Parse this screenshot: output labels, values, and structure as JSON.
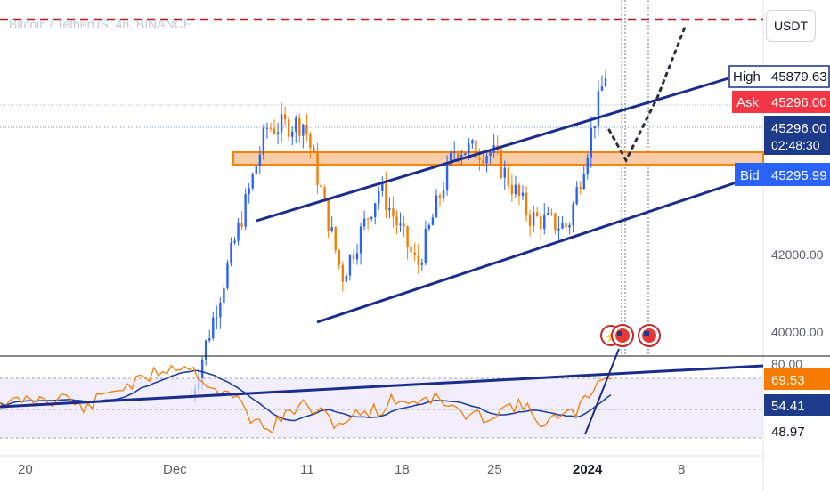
{
  "header": {
    "symbol_title": "Bitcoin / TetherUS, 4h, BINANCE",
    "currency_button": "USDT"
  },
  "price_scale": {
    "ticks": [
      "42000.00",
      "40000.00"
    ],
    "labels": {
      "high": {
        "name": "High",
        "value": "45879.63"
      },
      "ask": {
        "name": "Ask",
        "value": "45296.00"
      },
      "last": {
        "value": "45296.00",
        "countdown": "02:48:30"
      },
      "bid": {
        "name": "Bid",
        "value": "45295.99"
      }
    }
  },
  "rsi_scale": {
    "ticks": [
      "80.00"
    ],
    "labels": {
      "rsi": "69.53",
      "rsi_ma": "54.41",
      "low": "48.97"
    }
  },
  "time_axis": {
    "labels": [
      "20",
      "Dec",
      "11",
      "18",
      "25",
      "2024",
      "8"
    ]
  },
  "colors": {
    "up": "#2962ff",
    "down": "#f57c00",
    "trendline": "#1a2d8c",
    "resistance_fill": "#f9cba3",
    "resistance_stroke": "#f57c00",
    "dashed_level": "#b71c1c",
    "rsi_line": "#f57c00",
    "rsi_ma": "#1e40a8",
    "ask_label": "#f23645",
    "bid_label": "#2962ff",
    "last_label": "#1e3a8a"
  },
  "chart_data": {
    "type": "candlestick",
    "title": "Bitcoin / TetherUS, 4h, BINANCE",
    "xlabel": "",
    "ylabel": "",
    "price_levels": {
      "high": 45879.63,
      "ask": 45296.0,
      "bid": 45295.99,
      "last": 45296.0
    },
    "ylim_approx": [
      39600,
      46600
    ],
    "x_ticks": [
      "20",
      "Dec",
      "11",
      "18",
      "25",
      "2024",
      "8"
    ],
    "approx_close_path": [
      {
        "x": "Dec 1",
        "close": 38800
      },
      {
        "x": "Dec 3",
        "close": 41500
      },
      {
        "x": "Dec 5",
        "close": 44200
      },
      {
        "x": "Dec 8",
        "close": 44300
      },
      {
        "x": "Dec 11",
        "close": 41200
      },
      {
        "x": "Dec 13",
        "close": 43000
      },
      {
        "x": "Dec 17",
        "close": 41400
      },
      {
        "x": "Dec 20",
        "close": 43800
      },
      {
        "x": "Dec 23",
        "close": 43700
      },
      {
        "x": "Dec 27",
        "close": 42400
      },
      {
        "x": "Dec 31",
        "close": 42200
      },
      {
        "x": "Jan 2",
        "close": 45296
      }
    ],
    "rsi": {
      "value": 69.53,
      "ma": 54.41,
      "low": 48.97,
      "upper_band": 80
    }
  }
}
